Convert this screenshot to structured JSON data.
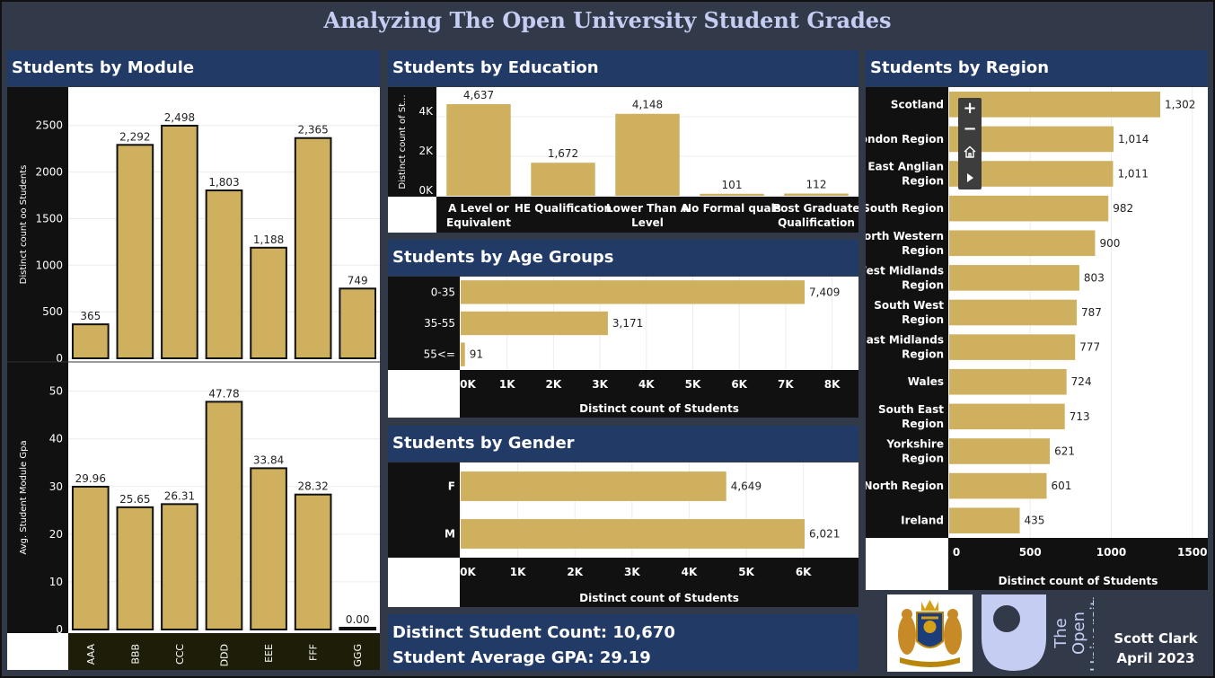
{
  "title": "Analyzing The Open University Student Grades",
  "panels": {
    "module": "Students by Module",
    "education": "Students by Education",
    "age": "Students by Age Groups",
    "gender": "Students by Gender",
    "region": "Students by Region"
  },
  "kpi": {
    "count": "Distinct Student Count: 10,670",
    "gpa": "Student Average GPA: 29.19"
  },
  "author": {
    "name": "Scott Clark",
    "date": "April 2023"
  },
  "logo_text": "The Open University",
  "colors": {
    "bar": "#cfb05f",
    "header": "#213a66",
    "background": "#323949"
  },
  "zoom_controls": {
    "icons": [
      "plus-icon",
      "minus-icon",
      "home-icon",
      "play-icon"
    ]
  },
  "chart_data": [
    {
      "id": "module_count",
      "type": "bar",
      "ylabel": "Distinct count oo Students",
      "ylim": [
        0,
        2700
      ],
      "yticks": [
        "0",
        "500",
        "1000",
        "1500",
        "2000",
        "2500"
      ],
      "yticks_values": [
        0,
        500,
        1000,
        1500,
        2000,
        2500
      ],
      "categories": [
        "AAA",
        "BBB",
        "CCC",
        "DDD",
        "EEE",
        "FFF",
        "GGG"
      ],
      "values": [
        365,
        2292,
        2498,
        1803,
        1188,
        2365,
        749
      ],
      "labels": [
        "365",
        "2,292",
        "2,498",
        "1,803",
        "1,188",
        "2,365",
        "749"
      ]
    },
    {
      "id": "module_gpa",
      "type": "bar",
      "ylabel": "Avg. Student Module Gpa",
      "ylim": [
        0,
        52
      ],
      "yticks": [
        "0",
        "10",
        "20",
        "30",
        "40",
        "50"
      ],
      "yticks_values": [
        0,
        10,
        20,
        30,
        40,
        50
      ],
      "categories": [
        "AAA",
        "BBB",
        "CCC",
        "DDD",
        "EEE",
        "FFF",
        "GGG"
      ],
      "values": [
        29.96,
        25.65,
        26.31,
        47.78,
        33.84,
        28.32,
        0.0
      ],
      "labels": [
        "29.96",
        "25.65",
        "26.31",
        "47.78",
        "33.84",
        "28.32",
        "0.00"
      ]
    },
    {
      "id": "education",
      "type": "bar",
      "ylabel": "Distinct count of St...",
      "ylim": [
        0,
        5000
      ],
      "yticks": [
        "0K",
        "2K",
        "4K"
      ],
      "yticks_values": [
        0,
        2000,
        4000
      ],
      "categories": [
        "A Level or Equivalent",
        "HE Qualification",
        "Lower Than A Level",
        "No Formal quals",
        "Post Graduate Qualification"
      ],
      "values": [
        4637,
        1672,
        4148,
        101,
        112
      ],
      "labels": [
        "4,637",
        "1,672",
        "4,148",
        "101",
        "112"
      ]
    },
    {
      "id": "age",
      "type": "bar",
      "orientation": "horizontal",
      "xlabel": "Distinct count of Students",
      "xlim": [
        0,
        8500
      ],
      "xticks": [
        "0K",
        "1K",
        "2K",
        "3K",
        "4K",
        "5K",
        "6K",
        "7K",
        "8K"
      ],
      "xticks_values": [
        0,
        1000,
        2000,
        3000,
        4000,
        5000,
        6000,
        7000,
        8000
      ],
      "categories": [
        "0-35",
        "35-55",
        "55<="
      ],
      "values": [
        7409,
        3171,
        91
      ],
      "labels": [
        "7,409",
        "3,171",
        "91"
      ]
    },
    {
      "id": "gender",
      "type": "bar",
      "orientation": "horizontal",
      "xlabel": "Distinct count of Students",
      "xlim": [
        0,
        6500
      ],
      "xticks": [
        "0K",
        "1K",
        "2K",
        "3K",
        "4K",
        "5K",
        "6K"
      ],
      "xticks_values": [
        0,
        1000,
        2000,
        3000,
        4000,
        5000,
        6000
      ],
      "categories": [
        "F",
        "M"
      ],
      "values": [
        4649,
        6021
      ],
      "labels": [
        "4,649",
        "6,021"
      ]
    },
    {
      "id": "region",
      "type": "bar",
      "orientation": "horizontal",
      "xlabel": "Distinct count of Students",
      "xlim": [
        0,
        1600
      ],
      "xticks": [
        "0",
        "500",
        "1000",
        "1500"
      ],
      "xticks_values": [
        0,
        500,
        1000,
        1500
      ],
      "categories": [
        "Scotland",
        "London Region",
        "East Anglian Region",
        "South Region",
        "North Western Region",
        "West Midlands Region",
        "South West Region",
        "East Midlands Region",
        "Wales",
        "South East Region",
        "Yorkshire Region",
        "North Region",
        "Ireland"
      ],
      "values": [
        1302,
        1014,
        1011,
        982,
        900,
        803,
        787,
        777,
        724,
        713,
        621,
        601,
        435
      ],
      "labels": [
        "1,302",
        "1,014",
        "1,011",
        "982",
        "900",
        "803",
        "787",
        "777",
        "724",
        "713",
        "621",
        "601",
        "435"
      ]
    }
  ]
}
